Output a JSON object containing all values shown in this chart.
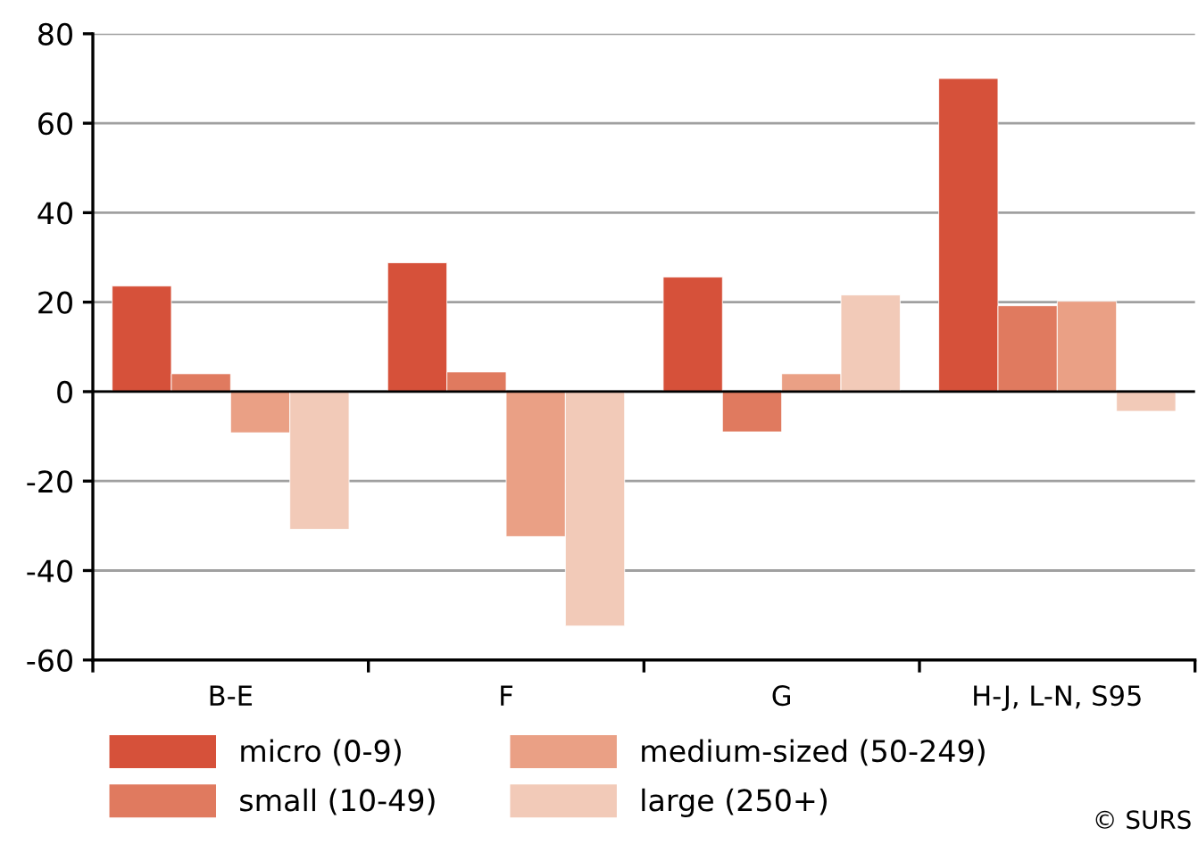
{
  "chart_data": {
    "type": "bar",
    "categories": [
      "B-E",
      "F",
      "G",
      "H-J, L-N, S95"
    ],
    "series": [
      {
        "name": "micro (0-9)",
        "color": "#d6513a",
        "values": [
          23.6,
          28.8,
          25.6,
          70
        ]
      },
      {
        "name": "small (10-49)",
        "color": "#e07a5f",
        "values": [
          4,
          4.4,
          -9,
          19.2
        ]
      },
      {
        "name": "medium-sized (50-249)",
        "color": "#eaa085",
        "values": [
          -9.2,
          -32.4,
          4,
          20.2
        ]
      },
      {
        "name": "large (250+)",
        "color": "#f2cab8",
        "values": [
          -30.8,
          -52.4,
          21.6,
          -4.4
        ]
      }
    ],
    "ylim": [
      -60,
      80
    ],
    "yticks": [
      -60,
      -40,
      -20,
      0,
      20,
      40,
      60,
      80
    ],
    "grid": "y",
    "legend": "bottom",
    "annotations": [
      "© SURS"
    ]
  }
}
